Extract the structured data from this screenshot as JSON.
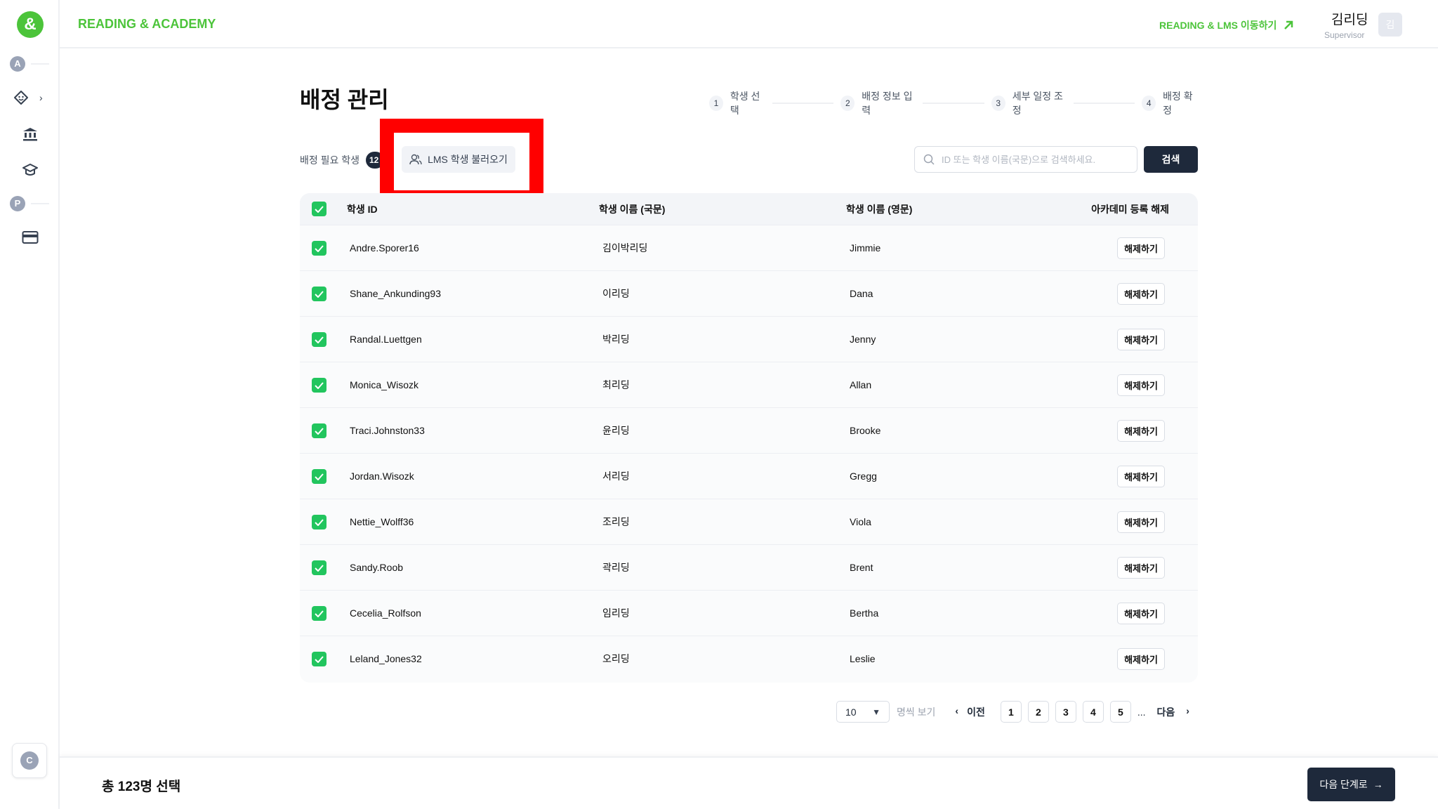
{
  "colors": {
    "brand": "#4cc43a",
    "primary": "#1e293b",
    "check": "#22c55e",
    "highlight": "#ff0000"
  },
  "header": {
    "logo": "&",
    "brand": "READING & ACADEMY",
    "lms_link": "READING & LMS 이동하기",
    "user_name": "김리딩",
    "user_role": "Supervisor",
    "avatar": "김"
  },
  "sidebar": {
    "section_a": "A",
    "section_p": "P",
    "bottom": "C",
    "icons": [
      "face-icon",
      "bank-icon",
      "graduation-cap-icon",
      "credit-card-icon"
    ]
  },
  "page": {
    "title": "배정 관리"
  },
  "steps": [
    {
      "num": "1",
      "label": "학생 선택"
    },
    {
      "num": "2",
      "label": "배정 정보 입력"
    },
    {
      "num": "3",
      "label": "세부 일정 조정"
    },
    {
      "num": "4",
      "label": "배정 확정"
    }
  ],
  "toolbar": {
    "need_label": "배정 필요 학생",
    "need_count": "12",
    "lms_button": "LMS 학생 불러오기",
    "search_placeholder": "ID 또는 학생 이름(국문)으로 검색하세요.",
    "search_value": "",
    "search_button": "검색"
  },
  "table": {
    "headers": [
      "학생 ID",
      "학생 이름 (국문)",
      "학생 이름 (영문)",
      "아카데미 등록 해제"
    ],
    "action_label": "해제하기",
    "rows": [
      {
        "id": "Andre.Sporer16",
        "ko": "김이박리딩",
        "en": "Jimmie",
        "checked": true
      },
      {
        "id": "Shane_Ankunding93",
        "ko": "이리딩",
        "en": "Dana",
        "checked": true
      },
      {
        "id": "Randal.Luettgen",
        "ko": "박리딩",
        "en": "Jenny",
        "checked": true
      },
      {
        "id": "Monica_Wisozk",
        "ko": "최리딩",
        "en": "Allan",
        "checked": true
      },
      {
        "id": "Traci.Johnston33",
        "ko": "윤리딩",
        "en": "Brooke",
        "checked": true
      },
      {
        "id": "Jordan.Wisozk",
        "ko": "서리딩",
        "en": "Gregg",
        "checked": true
      },
      {
        "id": "Nettie_Wolff36",
        "ko": "조리딩",
        "en": "Viola",
        "checked": true
      },
      {
        "id": "Sandy.Roob",
        "ko": "곽리딩",
        "en": "Brent",
        "checked": true
      },
      {
        "id": "Cecelia_Rolfson",
        "ko": "임리딩",
        "en": "Bertha",
        "checked": true
      },
      {
        "id": "Leland_Jones32",
        "ko": "오리딩",
        "en": "Leslie",
        "checked": true
      }
    ]
  },
  "pagination": {
    "page_size": "10",
    "page_size_label": "명씩 보기",
    "prev": "이전",
    "pages": [
      "1",
      "2",
      "3",
      "4",
      "5"
    ],
    "ellipsis": "...",
    "next": "다음"
  },
  "footer": {
    "total": "총 123명 선택",
    "next_button": "다음 단계로"
  }
}
